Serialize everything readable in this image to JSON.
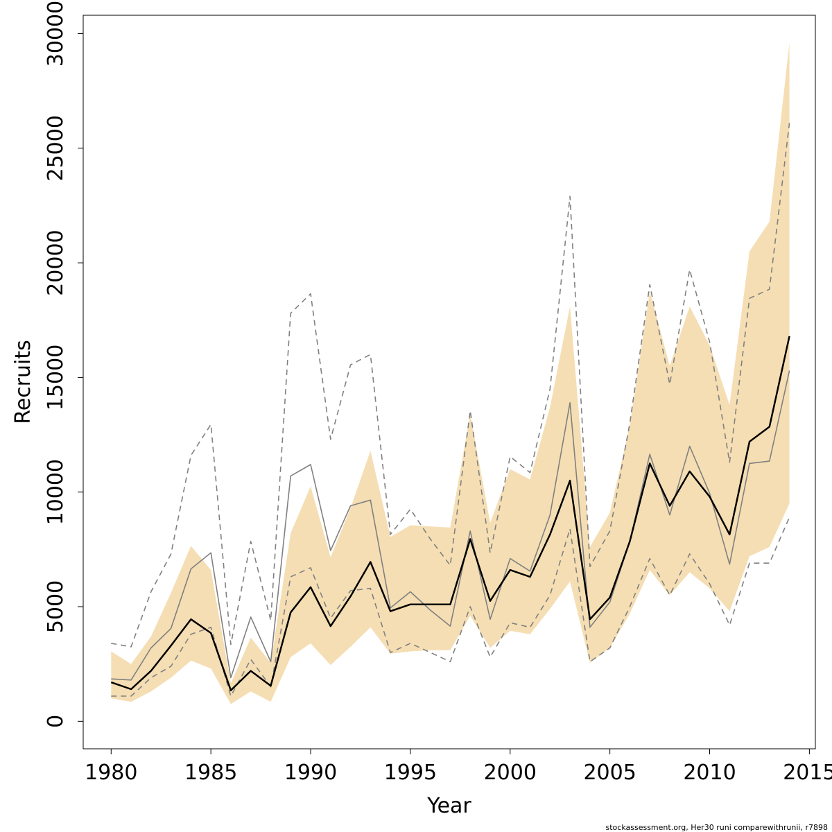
{
  "chart_data": {
    "type": "area",
    "xlabel": "Year",
    "ylabel": "Recruits",
    "xlim": [
      1978.6,
      2015.3
    ],
    "ylim": [
      -1200,
      30800
    ],
    "x_ticks": [
      1980,
      1985,
      1990,
      1995,
      2000,
      2005,
      2010,
      2015
    ],
    "y_ticks": [
      0,
      5000,
      10000,
      15000,
      20000,
      25000,
      30000
    ],
    "grid": false,
    "x": [
      1980,
      1981,
      1982,
      1983,
      1984,
      1985,
      1986,
      1987,
      1988,
      1989,
      1990,
      1991,
      1992,
      1993,
      1994,
      1995,
      1996,
      1997,
      1998,
      1999,
      2000,
      2001,
      2002,
      2003,
      2004,
      2005,
      2006,
      2007,
      2008,
      2009,
      2010,
      2011,
      2012,
      2013,
      2014
    ],
    "band": {
      "color": "#f5deb3",
      "lower": [
        1000,
        850,
        1300,
        1900,
        2650,
        2300,
        750,
        1300,
        850,
        2800,
        3400,
        2450,
        3250,
        4100,
        2950,
        3050,
        3100,
        3100,
        4600,
        3200,
        3950,
        3800,
        4900,
        6100,
        2550,
        3200,
        4700,
        6600,
        5500,
        6500,
        5800,
        4800,
        7200,
        7600,
        9500
      ],
      "upper": [
        3050,
        2500,
        3700,
        5600,
        7650,
        6600,
        1650,
        3650,
        2550,
        8200,
        10250,
        7150,
        9300,
        11800,
        8050,
        8550,
        8500,
        8450,
        13400,
        8650,
        11000,
        10550,
        13700,
        18100,
        7600,
        9100,
        12900,
        18750,
        15500,
        18100,
        16400,
        13800,
        20500,
        21800,
        29600
      ]
    },
    "series": [
      {
        "color": "#000000",
        "style": "solid",
        "values": [
          1700,
          1400,
          2200,
          3300,
          4450,
          3850,
          1350,
          2200,
          1550,
          4750,
          5850,
          4150,
          5450,
          6950,
          4800,
          5100,
          5100,
          5100,
          7950,
          5250,
          6600,
          6300,
          8150,
          10500,
          4450,
          5400,
          7850,
          11250,
          9400,
          10900,
          9800,
          8150,
          12200,
          12850,
          16800
        ]
      },
      {
        "color": "#808080",
        "style": "solid",
        "values": [
          1850,
          1800,
          3200,
          4050,
          6650,
          7350,
          1900,
          4550,
          2600,
          10700,
          11200,
          7450,
          9400,
          9650,
          4950,
          5650,
          4850,
          4150,
          8300,
          4450,
          7100,
          6550,
          9000,
          13900,
          4100,
          5200,
          7850,
          11650,
          9000,
          12000,
          9950,
          6850,
          11250,
          11350,
          15300
        ]
      },
      {
        "color": "#808080",
        "style": "dashed",
        "values": [
          3400,
          3250,
          5650,
          7300,
          11600,
          12950,
          3350,
          7850,
          4400,
          17800,
          18650,
          12300,
          15550,
          16000,
          8150,
          9250,
          7950,
          6800,
          13550,
          7350,
          11550,
          10850,
          14500,
          22900,
          6750,
          8300,
          13000,
          19050,
          14700,
          19700,
          16550,
          11300,
          18450,
          18850,
          26100
        ]
      },
      {
        "color": "#808080",
        "style": "dashed",
        "values": [
          1100,
          1100,
          1900,
          2400,
          3800,
          4100,
          1100,
          2700,
          1500,
          6300,
          6700,
          4500,
          5700,
          5800,
          3000,
          3400,
          3000,
          2600,
          5000,
          2800,
          4300,
          4100,
          5500,
          8400,
          2600,
          3200,
          5000,
          7100,
          5500,
          7300,
          6000,
          4200,
          6900,
          6900,
          8900
        ]
      }
    ]
  },
  "footer_text": "stockassessment.org, Her30  runi  comparewithrunii, r7898"
}
